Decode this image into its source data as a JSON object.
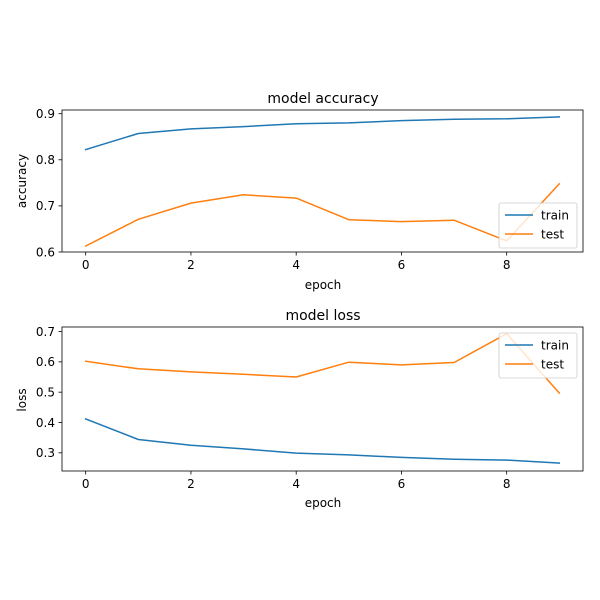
{
  "chart_data": [
    {
      "type": "line",
      "title": "model accuracy",
      "xlabel": "epoch",
      "ylabel": "accuracy",
      "x": [
        0,
        1,
        2,
        3,
        4,
        5,
        6,
        7,
        8,
        9
      ],
      "xlim": [
        -0.45,
        9.45
      ],
      "ylim": [
        0.6,
        0.908
      ],
      "xticks": [
        0,
        2,
        4,
        6,
        8
      ],
      "yticks": [
        0.6,
        0.7,
        0.8,
        0.9
      ],
      "xtick_labels": [
        "0",
        "2",
        "4",
        "6",
        "8"
      ],
      "ytick_labels": [
        "0.6",
        "0.7",
        "0.8",
        "0.9"
      ],
      "legend_position": "lower right",
      "series": [
        {
          "name": "train",
          "color": "#1f77b4",
          "values": [
            0.822,
            0.857,
            0.867,
            0.872,
            0.878,
            0.88,
            0.885,
            0.888,
            0.889,
            0.893
          ]
        },
        {
          "name": "test",
          "color": "#ff7f0e",
          "values": [
            0.613,
            0.671,
            0.706,
            0.724,
            0.717,
            0.67,
            0.666,
            0.669,
            0.624,
            0.748
          ]
        }
      ]
    },
    {
      "type": "line",
      "title": "model loss",
      "xlabel": "epoch",
      "ylabel": "loss",
      "x": [
        0,
        1,
        2,
        3,
        4,
        5,
        6,
        7,
        8,
        9
      ],
      "xlim": [
        -0.45,
        9.45
      ],
      "ylim": [
        0.24,
        0.715
      ],
      "xticks": [
        0,
        2,
        4,
        6,
        8
      ],
      "yticks": [
        0.3,
        0.4,
        0.5,
        0.6,
        0.7
      ],
      "xtick_labels": [
        "0",
        "2",
        "4",
        "6",
        "8"
      ],
      "ytick_labels": [
        "0.3",
        "0.4",
        "0.5",
        "0.6",
        "0.7"
      ],
      "legend_position": "upper right",
      "series": [
        {
          "name": "train",
          "color": "#1f77b4",
          "values": [
            0.412,
            0.344,
            0.325,
            0.313,
            0.299,
            0.293,
            0.285,
            0.279,
            0.276,
            0.266
          ]
        },
        {
          "name": "test",
          "color": "#ff7f0e",
          "values": [
            0.602,
            0.577,
            0.567,
            0.559,
            0.55,
            0.599,
            0.59,
            0.598,
            0.693,
            0.497
          ]
        }
      ]
    }
  ]
}
